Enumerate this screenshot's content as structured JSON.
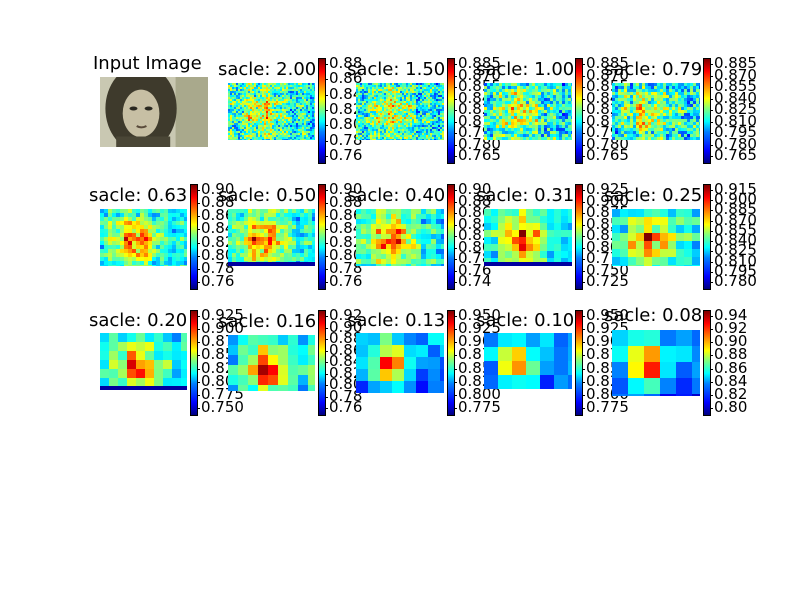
{
  "chart_data": [
    {
      "type": "image",
      "title": "Input Image"
    },
    {
      "type": "heatmap",
      "title": "sacle: 2.00",
      "colorbar_ticks": [
        "0.88",
        "0.86",
        "0.84",
        "0.82",
        "0.80",
        "0.78",
        "0.76"
      ]
    },
    {
      "type": "heatmap",
      "title": "sacle: 1.50",
      "colorbar_ticks": [
        "0.885",
        "0.870",
        "0.855",
        "0.840",
        "0.825",
        "0.810",
        "0.795",
        "0.780",
        "0.765"
      ]
    },
    {
      "type": "heatmap",
      "title": "sacle: 1.00",
      "colorbar_ticks": [
        "0.885",
        "0.870",
        "0.855",
        "0.840",
        "0.825",
        "0.810",
        "0.795",
        "0.780",
        "0.765"
      ]
    },
    {
      "type": "heatmap",
      "title": "sacle: 0.79",
      "colorbar_ticks": [
        "0.885",
        "0.870",
        "0.855",
        "0.840",
        "0.825",
        "0.810",
        "0.795",
        "0.780",
        "0.765"
      ]
    },
    {
      "type": "heatmap",
      "title": "sacle: 0.63",
      "colorbar_ticks": [
        "0.90",
        "0.88",
        "0.86",
        "0.84",
        "0.82",
        "0.80",
        "0.78",
        "0.76"
      ]
    },
    {
      "type": "heatmap",
      "title": "sacle: 0.50",
      "colorbar_ticks": [
        "0.90",
        "0.88",
        "0.86",
        "0.84",
        "0.82",
        "0.80",
        "0.78",
        "0.76"
      ]
    },
    {
      "type": "heatmap",
      "title": "sacle: 0.40",
      "colorbar_ticks": [
        "0.90",
        "0.88",
        "0.86",
        "0.84",
        "0.82",
        "0.80",
        "0.78",
        "0.76",
        "0.74"
      ]
    },
    {
      "type": "heatmap",
      "title": "sacle: 0.31",
      "colorbar_ticks": [
        "0.925",
        "0.900",
        "0.875",
        "0.850",
        "0.825",
        "0.800",
        "0.775",
        "0.750",
        "0.725"
      ]
    },
    {
      "type": "heatmap",
      "title": "sacle: 0.25",
      "colorbar_ticks": [
        "0.915",
        "0.900",
        "0.885",
        "0.870",
        "0.855",
        "0.840",
        "0.825",
        "0.810",
        "0.795",
        "0.780"
      ]
    },
    {
      "type": "heatmap",
      "title": "sacle: 0.20",
      "colorbar_ticks": [
        "0.925",
        "0.900",
        "0.875",
        "0.850",
        "0.825",
        "0.800",
        "0.775",
        "0.750"
      ]
    },
    {
      "type": "heatmap",
      "title": "sacle: 0.16",
      "colorbar_ticks": [
        "0.92",
        "0.90",
        "0.88",
        "0.86",
        "0.84",
        "0.82",
        "0.80",
        "0.78",
        "0.76"
      ]
    },
    {
      "type": "heatmap",
      "title": "sacle: 0.13",
      "colorbar_ticks": [
        "0.950",
        "0.925",
        "0.900",
        "0.875",
        "0.850",
        "0.825",
        "0.800",
        "0.775"
      ]
    },
    {
      "type": "heatmap",
      "title": "sacle: 0.10",
      "colorbar_ticks": [
        "0.950",
        "0.925",
        "0.900",
        "0.875",
        "0.850",
        "0.825",
        "0.800",
        "0.775"
      ]
    },
    {
      "type": "heatmap",
      "title": "sacle: 0.08",
      "colorbar_ticks": [
        "0.94",
        "0.92",
        "0.90",
        "0.88",
        "0.86",
        "0.84",
        "0.82",
        "0.80"
      ]
    }
  ]
}
